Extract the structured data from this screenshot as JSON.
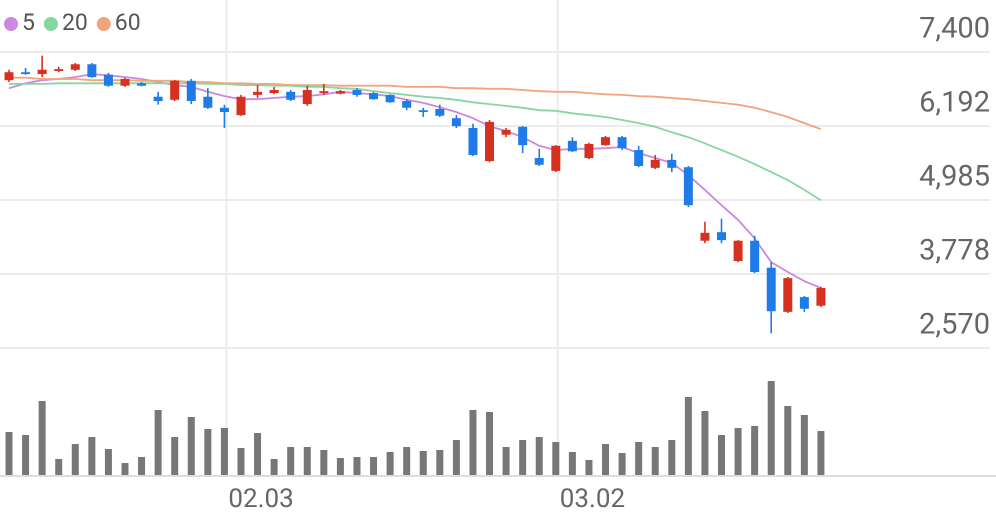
{
  "chart_data": {
    "type": "candlestick",
    "categories": [
      null,
      null,
      null,
      null,
      null,
      null,
      null,
      null,
      null,
      null,
      null,
      null,
      null,
      "02.03",
      null,
      null,
      null,
      null,
      null,
      null,
      null,
      null,
      null,
      null,
      null,
      null,
      null,
      null,
      null,
      null,
      null,
      null,
      null,
      "03.02",
      null,
      null,
      null,
      null,
      null,
      null,
      null,
      null,
      null,
      null,
      null,
      null,
      null,
      null,
      null,
      null
    ],
    "open": [
      6940,
      7070,
      7040,
      7090,
      7110,
      7200,
      7030,
      6850,
      6890,
      6670,
      6620,
      6930,
      6670,
      6490,
      6370,
      6700,
      6730,
      6750,
      6550,
      6730,
      6720,
      6780,
      6730,
      6700,
      6600,
      6450,
      6470,
      6320,
      6160,
      5620,
      6050,
      6180,
      5670,
      5460,
      5950,
      5670,
      5880,
      6010,
      5800,
      5510,
      5640,
      5520,
      4320,
      4460,
      3990,
      4320,
      3880,
      3160,
      3400,
      3260
    ],
    "high": [
      7110,
      7140,
      7340,
      7160,
      7220,
      7220,
      7060,
      6980,
      6910,
      6750,
      6940,
      6960,
      6810,
      6540,
      6700,
      6860,
      6830,
      6780,
      6850,
      6880,
      6780,
      6810,
      6750,
      6710,
      6630,
      6490,
      6540,
      6370,
      6230,
      6290,
      6160,
      6190,
      5820,
      5880,
      6010,
      5920,
      6030,
      6030,
      5870,
      5720,
      5740,
      5540,
      4630,
      4680,
      4330,
      4400,
      3970,
      3730,
      3420,
      3570
    ],
    "low": [
      6910,
      7030,
      6990,
      7070,
      7090,
      6980,
      6830,
      6830,
      6840,
      6540,
      6600,
      6550,
      6470,
      6160,
      6360,
      6650,
      6710,
      6600,
      6520,
      6700,
      6710,
      6670,
      6620,
      6570,
      6450,
      6340,
      6340,
      6160,
      5700,
      5600,
      6010,
      5750,
      5540,
      5440,
      5770,
      5650,
      5870,
      5800,
      5520,
      5490,
      5440,
      4870,
      4280,
      4280,
      3970,
      3790,
      2810,
      3140,
      3160,
      3240
    ],
    "close": [
      7070,
      7040,
      7110,
      7120,
      7200,
      6990,
      6850,
      6960,
      6850,
      6600,
      6930,
      6600,
      6490,
      6420,
      6670,
      6750,
      6780,
      6620,
      6780,
      6760,
      6760,
      6700,
      6630,
      6580,
      6490,
      6420,
      6360,
      6190,
      5720,
      6260,
      6130,
      5880,
      5560,
      5870,
      5780,
      5900,
      6010,
      5830,
      5540,
      5640,
      5510,
      4900,
      4450,
      4330,
      4320,
      3810,
      3170,
      3710,
      3210,
      3550
    ],
    "volume": [
      43,
      40,
      74,
      16,
      31,
      38,
      26,
      12,
      18,
      65,
      38,
      58,
      46,
      47,
      27,
      42,
      16,
      28,
      28,
      25,
      17,
      18,
      18,
      23,
      28,
      24,
      25,
      35,
      65,
      63,
      28,
      35,
      38,
      33,
      23,
      15,
      31,
      22,
      33,
      28,
      35,
      78,
      64,
      40,
      47,
      49,
      94,
      69,
      60,
      44
    ],
    "moving_averages": [
      {
        "name": "5",
        "color": "#cc88e0",
        "values": [
          6810,
          6890,
          6940,
          6960,
          6990,
          7040,
          7020,
          6990,
          6960,
          6910,
          6860,
          6830,
          6750,
          6680,
          6630,
          6630,
          6650,
          6670,
          6680,
          6710,
          6750,
          6730,
          6710,
          6680,
          6620,
          6570,
          6500,
          6420,
          6320,
          6190,
          6110,
          6010,
          5870,
          5800,
          5820,
          5820,
          5830,
          5850,
          5750,
          5670,
          5590,
          5390,
          5150,
          4900,
          4660,
          4360,
          3970,
          3810,
          3660,
          3550
        ]
      },
      {
        "name": "20",
        "color": "#86d6a0",
        "values": [
          6880,
          6880,
          6880,
          6890,
          6890,
          6890,
          6890,
          6890,
          6890,
          6890,
          6890,
          6890,
          6880,
          6880,
          6860,
          6860,
          6850,
          6850,
          6830,
          6830,
          6810,
          6800,
          6760,
          6730,
          6700,
          6670,
          6650,
          6620,
          6580,
          6550,
          6520,
          6490,
          6450,
          6440,
          6400,
          6370,
          6340,
          6290,
          6240,
          6180,
          6090,
          6010,
          5910,
          5800,
          5690,
          5570,
          5440,
          5310,
          5150,
          4980
        ]
      },
      {
        "name": "60",
        "color": "#f2a47c",
        "values": [
          6980,
          6980,
          6960,
          6960,
          6960,
          6940,
          6940,
          6940,
          6930,
          6930,
          6930,
          6910,
          6910,
          6890,
          6890,
          6880,
          6880,
          6860,
          6860,
          6860,
          6850,
          6850,
          6850,
          6850,
          6830,
          6830,
          6830,
          6810,
          6810,
          6800,
          6800,
          6780,
          6760,
          6750,
          6750,
          6730,
          6710,
          6700,
          6680,
          6670,
          6650,
          6630,
          6600,
          6570,
          6540,
          6490,
          6420,
          6340,
          6240,
          6140
        ]
      }
    ],
    "ylim": [
      2570,
      7400
    ],
    "yticks": [
      {
        "value": 7400,
        "label": "7,400"
      },
      {
        "value": 6192,
        "label": "6,192"
      },
      {
        "value": 4985,
        "label": "4,985"
      },
      {
        "value": 3778,
        "label": "3,778"
      },
      {
        "value": 2570,
        "label": "2,570"
      }
    ],
    "volume_ylim": [
      0,
      115
    ],
    "up_color": "#d63020",
    "down_color": "#1f7be8",
    "volume_color": "#777777",
    "grid": true
  }
}
